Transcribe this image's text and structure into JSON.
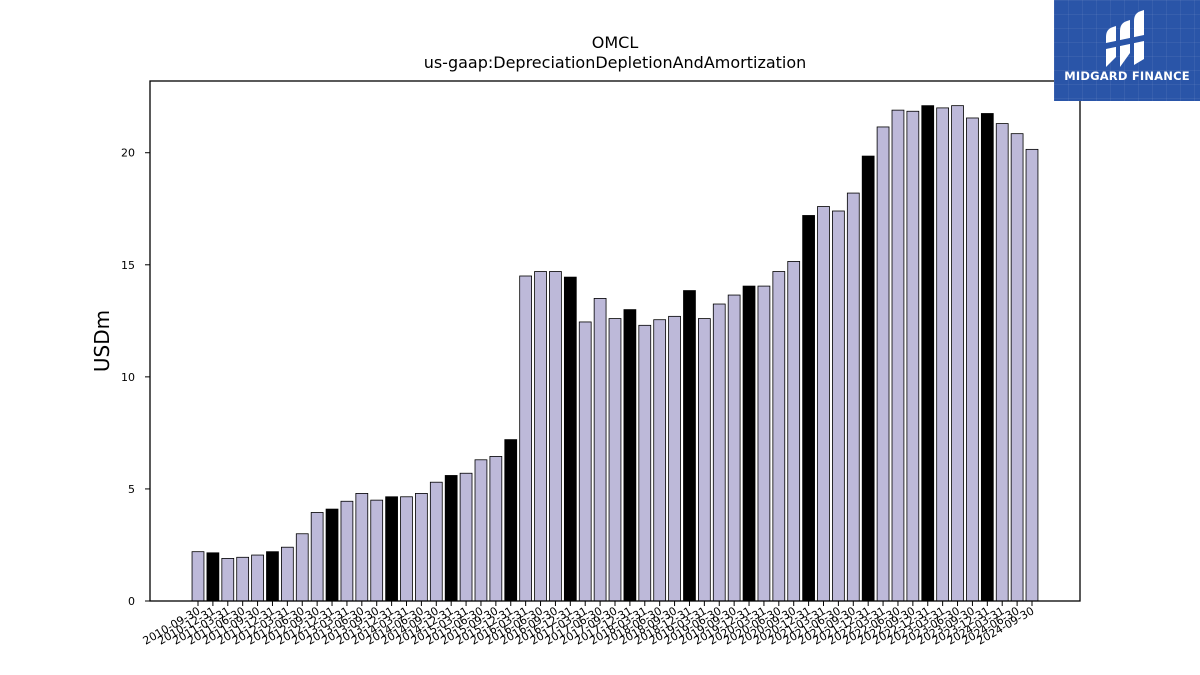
{
  "chart_data": {
    "type": "bar",
    "title": "OMCL",
    "subtitle": "us-gaap:DepreciationDepletionAndAmortization",
    "xlabel": "",
    "ylabel": "USDm",
    "ylim": [
      0,
      23.2
    ],
    "yticks": [
      0,
      5,
      10,
      15,
      20
    ],
    "grid": false,
    "colors": {
      "normal": "#bdb9d9",
      "highlight": "#000000",
      "edge": "#000000"
    },
    "categories": [
      "2010-09-30",
      "2010-12-31",
      "2011-03-31",
      "2011-06-30",
      "2011-09-30",
      "2011-12-31",
      "2012-03-31",
      "2012-06-30",
      "2012-09-30",
      "2012-12-31",
      "2013-03-31",
      "2013-06-30",
      "2013-09-30",
      "2013-12-31",
      "2014-03-31",
      "2014-06-30",
      "2014-09-30",
      "2014-12-31",
      "2015-03-31",
      "2015-06-30",
      "2015-09-30",
      "2015-12-31",
      "2016-03-31",
      "2016-06-30",
      "2016-09-30",
      "2016-12-31",
      "2017-03-31",
      "2017-06-30",
      "2017-09-30",
      "2017-12-31",
      "2018-03-31",
      "2018-06-30",
      "2018-09-30",
      "2018-12-31",
      "2019-03-31",
      "2019-06-30",
      "2019-09-30",
      "2019-12-31",
      "2020-03-31",
      "2020-06-30",
      "2020-09-30",
      "2020-12-31",
      "2021-03-31",
      "2021-06-30",
      "2021-09-30",
      "2021-12-31",
      "2022-03-31",
      "2022-06-30",
      "2022-09-30",
      "2022-12-31",
      "2023-03-31",
      "2023-06-30",
      "2023-09-30",
      "2023-12-31",
      "2024-03-31",
      "2024-06-30",
      "2024-09-30"
    ],
    "values": [
      2.2,
      2.15,
      1.9,
      1.95,
      2.05,
      2.2,
      2.4,
      3.0,
      3.95,
      4.1,
      4.45,
      4.8,
      4.5,
      4.65,
      4.65,
      4.8,
      5.3,
      5.6,
      5.7,
      6.3,
      6.45,
      7.2,
      14.5,
      14.7,
      14.7,
      14.45,
      12.45,
      13.5,
      12.6,
      13.0,
      12.3,
      12.55,
      12.7,
      13.85,
      12.6,
      13.25,
      13.65,
      14.05,
      14.05,
      14.7,
      15.15,
      17.2,
      17.6,
      17.4,
      18.2,
      19.85,
      21.15,
      21.9,
      21.85,
      22.1,
      22.0,
      22.1,
      21.55,
      21.75,
      21.3,
      20.85,
      20.15
    ],
    "highlighted": [
      false,
      true,
      false,
      false,
      false,
      true,
      false,
      false,
      false,
      true,
      false,
      false,
      false,
      true,
      false,
      false,
      false,
      true,
      false,
      false,
      false,
      true,
      false,
      false,
      false,
      true,
      false,
      false,
      false,
      true,
      false,
      false,
      false,
      true,
      false,
      false,
      false,
      true,
      false,
      false,
      false,
      true,
      false,
      false,
      false,
      true,
      false,
      false,
      false,
      true,
      false,
      false,
      false,
      true,
      false,
      false,
      false
    ]
  },
  "logo": {
    "text": "MIDGARD FINANCE",
    "icon": "midgard-logo-icon"
  }
}
